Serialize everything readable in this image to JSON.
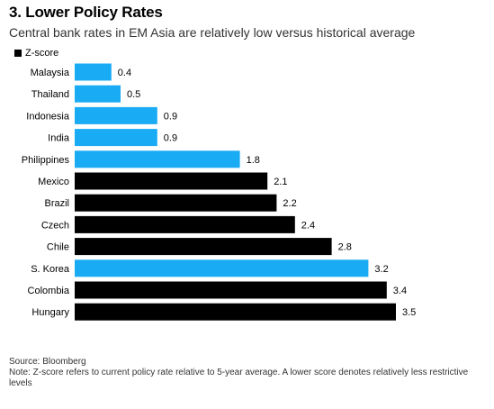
{
  "title": "3. Lower Policy Rates",
  "subtitle": "Central bank rates in EM Asia are relatively low versus historical average",
  "legend": {
    "label": "Z-score"
  },
  "colors": {
    "highlight": "#1aabf5",
    "default": "#000000"
  },
  "chart_data": {
    "type": "bar",
    "orientation": "horizontal",
    "title": "3. Lower Policy Rates",
    "subtitle": "Central bank rates in EM Asia are relatively low versus historical average",
    "xlim": [
      0,
      3.5
    ],
    "grid": false,
    "legend": "top-left",
    "series": [
      {
        "name": "Z-score"
      }
    ],
    "categories": [
      "Malaysia",
      "Thailand",
      "Indonesia",
      "India",
      "Philippines",
      "Mexico",
      "Brazil",
      "Czech",
      "Chile",
      "S. Korea",
      "Colombia",
      "Hungary"
    ],
    "values": [
      0.4,
      0.5,
      0.9,
      0.9,
      1.8,
      2.1,
      2.2,
      2.4,
      2.8,
      3.2,
      3.4,
      3.5
    ],
    "labels": [
      "0.4",
      "0.5",
      "0.9",
      "0.9",
      "1.8",
      "2.1",
      "2.2",
      "2.4",
      "2.8",
      "3.2",
      "3.4",
      "3.5"
    ],
    "highlight": [
      true,
      true,
      true,
      true,
      true,
      false,
      false,
      false,
      false,
      true,
      false,
      false
    ]
  },
  "source": "Source: Bloomberg",
  "note": "Note: Z-score refers to current policy rate relative to 5-year average. A lower score denotes relatively less restrictive levels"
}
